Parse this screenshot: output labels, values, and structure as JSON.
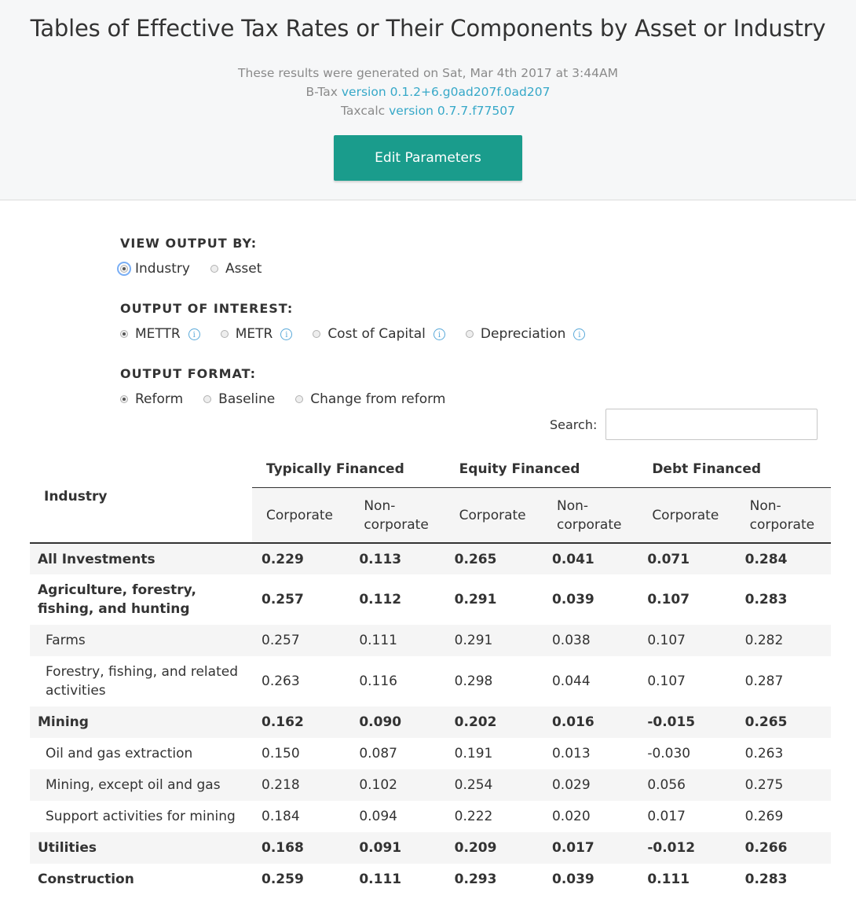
{
  "header": {
    "title": "Tables of Effective Tax Rates or Their Components by Asset or Industry",
    "generated": "These results were generated on Sat, Mar 4th 2017 at 3:44AM",
    "btax_prefix": "B-Tax",
    "btax_version": "version 0.1.2+6.g0ad207f.0ad207",
    "taxcalc_prefix": "Taxcalc",
    "taxcalc_version": "version 0.7.7.f77507",
    "edit_button": "Edit Parameters"
  },
  "controls": {
    "view_label": "VIEW OUTPUT BY:",
    "view_options": [
      "Industry",
      "Asset"
    ],
    "interest_label": "OUTPUT OF INTEREST:",
    "interest_options": [
      "METTR",
      "METR",
      "Cost of Capital",
      "Depreciation"
    ],
    "format_label": "OUTPUT FORMAT:",
    "format_options": [
      "Reform",
      "Baseline",
      "Change from reform"
    ],
    "search_label": "Search:",
    "search_value": ""
  },
  "table": {
    "first_col": "Industry",
    "groups": [
      "Typically Financed",
      "Equity Financed",
      "Debt Financed"
    ],
    "sub_corporate": "Corporate",
    "sub_noncorp_1": "Non-",
    "sub_noncorp_2": "corporate",
    "rows": [
      {
        "name": "All Investments",
        "bold": true,
        "indent": false,
        "values": [
          "0.229",
          "0.113",
          "0.265",
          "0.041",
          "0.071",
          "0.284"
        ]
      },
      {
        "name": "Agriculture, forestry, fishing, and hunting",
        "bold": true,
        "indent": false,
        "values": [
          "0.257",
          "0.112",
          "0.291",
          "0.039",
          "0.107",
          "0.283"
        ]
      },
      {
        "name": "Farms",
        "bold": false,
        "indent": true,
        "values": [
          "0.257",
          "0.111",
          "0.291",
          "0.038",
          "0.107",
          "0.282"
        ]
      },
      {
        "name": "Forestry, fishing, and related activities",
        "bold": false,
        "indent": true,
        "values": [
          "0.263",
          "0.116",
          "0.298",
          "0.044",
          "0.107",
          "0.287"
        ]
      },
      {
        "name": "Mining",
        "bold": true,
        "indent": false,
        "values": [
          "0.162",
          "0.090",
          "0.202",
          "0.016",
          "-0.015",
          "0.265"
        ]
      },
      {
        "name": "Oil and gas extraction",
        "bold": false,
        "indent": true,
        "values": [
          "0.150",
          "0.087",
          "0.191",
          "0.013",
          "-0.030",
          "0.263"
        ]
      },
      {
        "name": "Mining, except oil and gas",
        "bold": false,
        "indent": true,
        "values": [
          "0.218",
          "0.102",
          "0.254",
          "0.029",
          "0.056",
          "0.275"
        ]
      },
      {
        "name": "Support activities for mining",
        "bold": false,
        "indent": true,
        "values": [
          "0.184",
          "0.094",
          "0.222",
          "0.020",
          "0.017",
          "0.269"
        ]
      },
      {
        "name": "Utilities",
        "bold": true,
        "indent": false,
        "values": [
          "0.168",
          "0.091",
          "0.209",
          "0.017",
          "-0.012",
          "0.266"
        ]
      },
      {
        "name": "Construction",
        "bold": true,
        "indent": false,
        "values": [
          "0.259",
          "0.111",
          "0.293",
          "0.039",
          "0.111",
          "0.283"
        ]
      }
    ]
  }
}
